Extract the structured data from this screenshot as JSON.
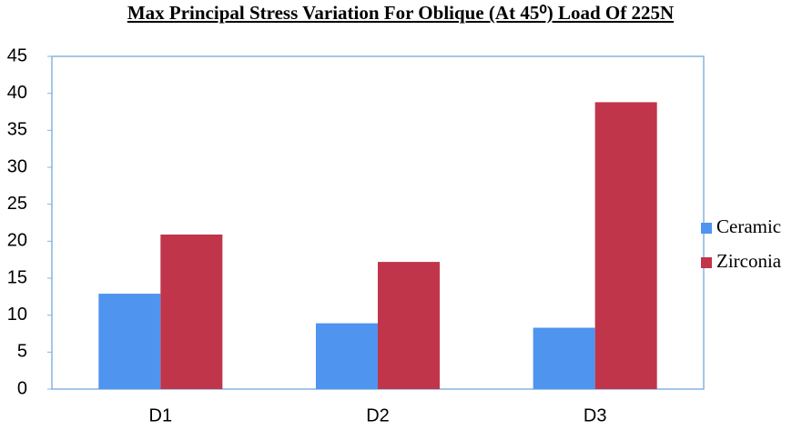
{
  "chart_data": {
    "type": "bar",
    "title": "Max  Principal Stress Variation For Oblique (At 45⁰) Load Of 225N",
    "categories": [
      "D1",
      "D2",
      "D3"
    ],
    "series": [
      {
        "name": "Ceramic",
        "color": "#4f94ef",
        "values": [
          12.9,
          8.9,
          8.3
        ]
      },
      {
        "name": "Zirconia",
        "color": "#c0354a",
        "values": [
          20.9,
          17.2,
          38.8
        ]
      }
    ],
    "ylim": [
      0,
      45
    ],
    "yticks": [
      0,
      5,
      10,
      15,
      20,
      25,
      30,
      35,
      40,
      45
    ],
    "grid": false,
    "legend": "right"
  }
}
